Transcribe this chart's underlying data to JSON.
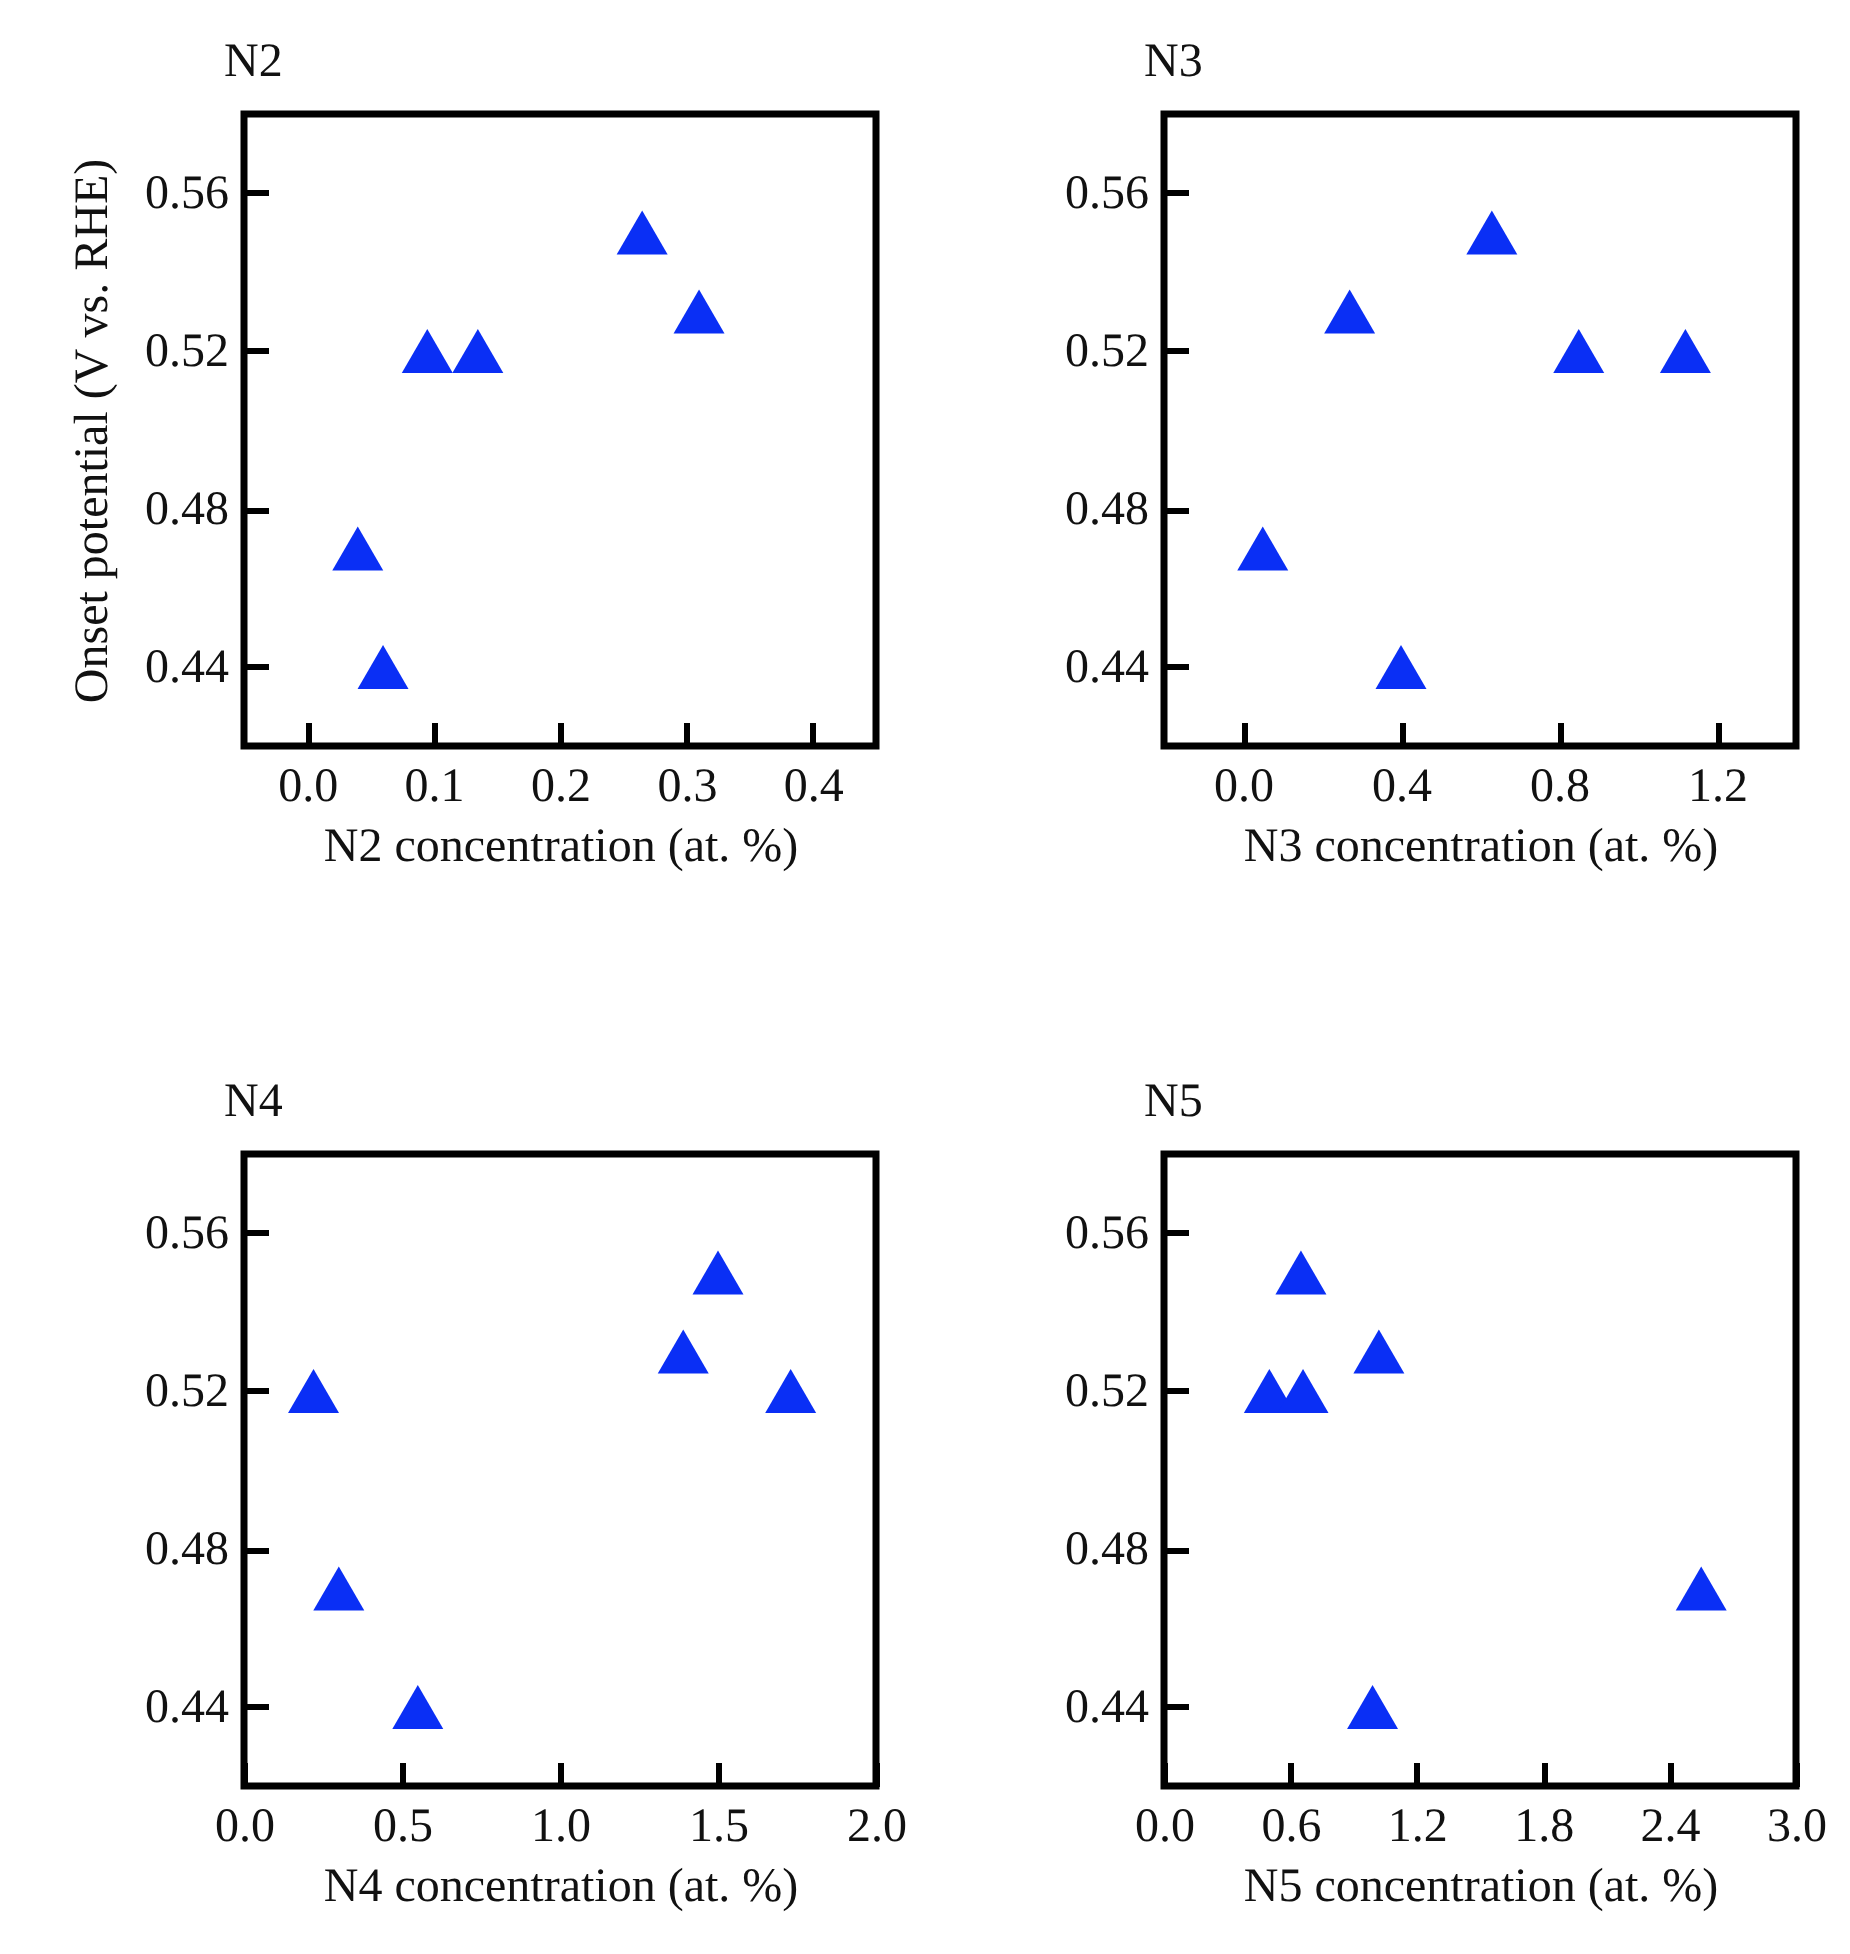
{
  "chart_data": [
    {
      "type": "scatter",
      "title": "N2",
      "xlabel": "N2 concentration (at. %)",
      "ylabel": "Onset potential (V vs. RHE)",
      "marker": "triangle",
      "color": "#0a2ff5",
      "x": [
        0.04,
        0.06,
        0.095,
        0.135,
        0.265,
        0.31
      ],
      "values": [
        0.47,
        0.44,
        0.52,
        0.52,
        0.55,
        0.53
      ],
      "xlim": [
        -0.05,
        0.45
      ],
      "xticks": [
        {
          "value": 0,
          "label": "0.0"
        },
        0.1,
        0.2,
        0.3,
        0.4
      ],
      "ylim": [
        0.42,
        0.58
      ],
      "yticks": [
        0.44,
        0.48,
        0.52,
        0.56
      ]
    },
    {
      "type": "scatter",
      "title": "N3",
      "xlabel": "N3 concentration (at. %)",
      "marker": "triangle",
      "color": "#0a2ff5",
      "x": [
        0.05,
        0.27,
        0.4,
        0.63,
        0.85,
        1.12
      ],
      "values": [
        0.47,
        0.53,
        0.44,
        0.55,
        0.52,
        0.52
      ],
      "xlim": [
        -0.2,
        1.4
      ],
      "xticks": [
        {
          "value": 0,
          "label": "0.0"
        },
        0.4,
        0.8,
        1.2
      ],
      "ylim": [
        0.42,
        0.58
      ],
      "yticks": [
        0.44,
        0.48,
        0.52,
        0.56
      ]
    },
    {
      "type": "scatter",
      "title": "N4",
      "xlabel": "N4 concentration (at. %)",
      "marker": "triangle",
      "color": "#0a2ff5",
      "x": [
        0.22,
        0.3,
        0.55,
        1.39,
        1.5,
        1.73
      ],
      "values": [
        0.52,
        0.47,
        0.44,
        0.53,
        0.55,
        0.52
      ],
      "xlim": [
        0,
        2
      ],
      "xticks": [
        {
          "value": 0,
          "label": "0.0"
        },
        0.5,
        {
          "value": 1,
          "label": "1.0"
        },
        1.5,
        {
          "value": 2,
          "label": "2.0"
        }
      ],
      "ylim": [
        0.42,
        0.58
      ],
      "yticks": [
        0.44,
        0.48,
        0.52,
        0.56
      ]
    },
    {
      "type": "scatter",
      "title": "N5",
      "xlabel": "N5 concentration (at. %)",
      "marker": "triangle",
      "color": "#0a2ff5",
      "x": [
        0.5,
        0.66,
        0.65,
        1.02,
        0.99,
        2.55
      ],
      "values": [
        0.52,
        0.52,
        0.55,
        0.53,
        0.44,
        0.47
      ],
      "xlim": [
        0,
        3
      ],
      "xticks": [
        {
          "value": 0,
          "label": "0.0"
        },
        0.6,
        1.2,
        1.8,
        2.4,
        {
          "value": 3,
          "label": "3.0"
        }
      ],
      "ylim": [
        0.42,
        0.58
      ],
      "yticks": [
        0.44,
        0.48,
        0.52,
        0.56
      ]
    }
  ]
}
